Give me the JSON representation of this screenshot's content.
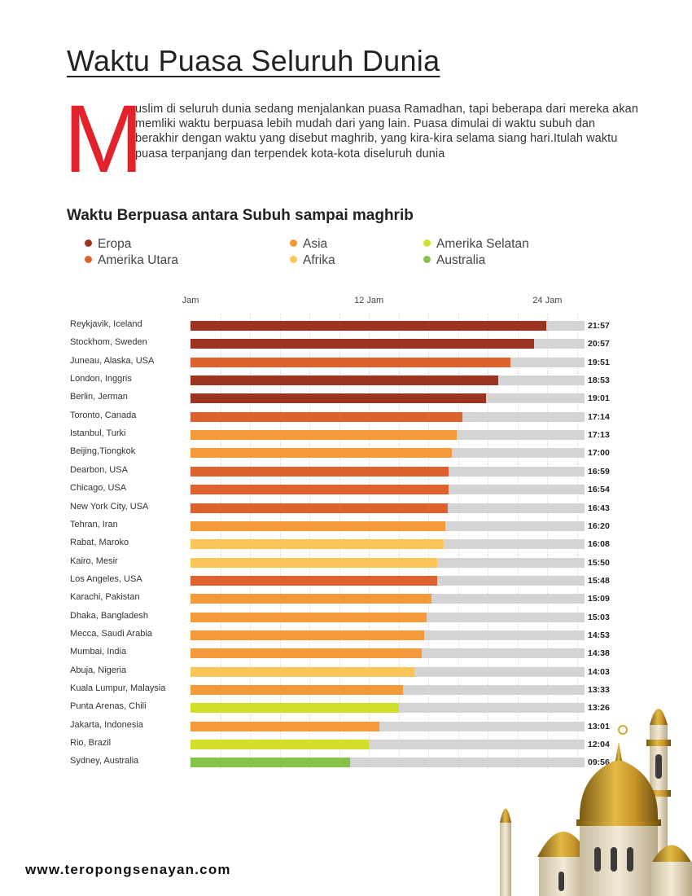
{
  "title": "Waktu Puasa Seluruh Dunia",
  "intro": {
    "dropcap": "M",
    "text": "uslim di seluruh dunia sedang menjalankan puasa Ramadhan, tapi beberapa dari mereka akan memliki waktu berpuasa lebih mudah dari yang lain. Puasa dimulai di waktu subuh dan berakhir dengan waktu yang disebut maghrib, yang kira-kira selama siang hari.Itulah waktu puasa terpanjang dan terpendek kota-kota diseluruh dunia"
  },
  "footer": {
    "url": "www.teropongsenayan.com"
  },
  "chart_data": {
    "type": "bar",
    "orientation": "horizontal",
    "title": "Waktu Berpuasa antara Subuh sampai maghrib",
    "xlim": [
      0,
      26.5
    ],
    "x_ticks": [
      {
        "value": 0,
        "label": "Jam"
      },
      {
        "value": 12,
        "label": "12 Jam"
      },
      {
        "value": 24,
        "label": "24 Jam"
      }
    ],
    "legend": [
      {
        "name": "Eropa",
        "color": "#9b3522"
      },
      {
        "name": "Amerika Utara",
        "color": "#dd622e"
      },
      {
        "name": "Asia",
        "color": "#f59a3a"
      },
      {
        "name": "Afrika",
        "color": "#fcc55a"
      },
      {
        "name": "Amerika Selatan",
        "color": "#d2df2a"
      },
      {
        "name": "Australia",
        "color": "#86c14a"
      }
    ],
    "rows": [
      {
        "city": "Reykjavik, Iceland",
        "time": "21:57",
        "hours": 23.95,
        "region": "Eropa"
      },
      {
        "city": "Stockhom, Sweden",
        "time": "20:57",
        "hours": 23.1,
        "region": "Eropa"
      },
      {
        "city": "Juneau, Alaska, USA",
        "time": "19:51",
        "hours": 21.5,
        "region": "Amerika Utara"
      },
      {
        "city": "London, Inggris",
        "time": "18:53",
        "hours": 20.7,
        "region": "Eropa"
      },
      {
        "city": "Berlin, Jerman",
        "time": "19:01",
        "hours": 19.9,
        "region": "Eropa"
      },
      {
        "city": "Toronto, Canada",
        "time": "17:14",
        "hours": 18.3,
        "region": "Amerika Utara"
      },
      {
        "city": "Istanbul, Turki",
        "time": "17:13",
        "hours": 17.9,
        "region": "Asia"
      },
      {
        "city": "Beijing,Tiongkok",
        "time": "17:00",
        "hours": 17.6,
        "region": "Asia"
      },
      {
        "city": "Dearbon, USA",
        "time": "16:59",
        "hours": 17.35,
        "region": "Amerika Utara"
      },
      {
        "city": "Chicago, USA",
        "time": "16:54",
        "hours": 17.35,
        "region": "Amerika Utara"
      },
      {
        "city": "New York City, USA",
        "time": "16:43",
        "hours": 17.3,
        "region": "Amerika Utara"
      },
      {
        "city": "Tehran, Iran",
        "time": "16:20",
        "hours": 17.15,
        "region": "Asia"
      },
      {
        "city": "Rabat, Maroko",
        "time": "16:08",
        "hours": 17.05,
        "region": "Afrika"
      },
      {
        "city": "Kairo, Mesir",
        "time": "15:50",
        "hours": 16.6,
        "region": "Afrika"
      },
      {
        "city": "Los Angeles, USA",
        "time": "15:48",
        "hours": 16.6,
        "region": "Amerika Utara"
      },
      {
        "city": "Karachi, Pakistan",
        "time": "15:09",
        "hours": 16.2,
        "region": "Asia"
      },
      {
        "city": "Dhaka, Bangladesh",
        "time": "15:03",
        "hours": 15.9,
        "region": "Asia"
      },
      {
        "city": "Mecca, Saudi Arabia",
        "time": "14:53",
        "hours": 15.7,
        "region": "Asia"
      },
      {
        "city": "Mumbai, India",
        "time": "14:38",
        "hours": 15.55,
        "region": "Asia"
      },
      {
        "city": "Abuja, Nigeria",
        "time": "14:03",
        "hours": 15.05,
        "region": "Afrika"
      },
      {
        "city": "Kuala Lumpur, Malaysia",
        "time": "13:33",
        "hours": 14.3,
        "region": "Asia"
      },
      {
        "city": "Punta Arenas, Chili",
        "time": "13:26",
        "hours": 14.0,
        "region": "Amerika Selatan"
      },
      {
        "city": "Jakarta, Indonesia",
        "time": "13:01",
        "hours": 12.7,
        "region": "Asia"
      },
      {
        "city": "Rio, Brazil",
        "time": "12:04",
        "hours": 12.0,
        "region": "Amerika Selatan"
      },
      {
        "city": "Sydney, Australia",
        "time": "09:56",
        "hours": 10.75,
        "region": "Australia"
      }
    ]
  }
}
